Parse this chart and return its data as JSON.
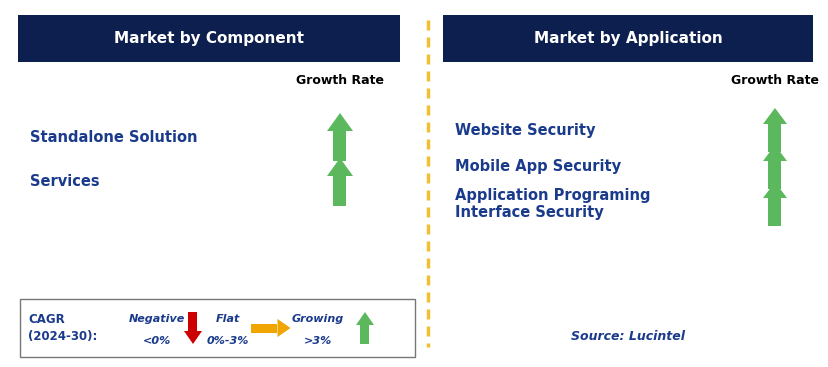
{
  "background_color": "#ffffff",
  "dark_blue": "#0d1f4e",
  "text_blue": "#1a3a8c",
  "green_arrow": "#5cb85c",
  "red_arrow": "#cc0000",
  "orange_arrow": "#f0a500",
  "left_title": "Market by Component",
  "right_title": "Market by Application",
  "left_items": [
    "Standalone Solution",
    "Services"
  ],
  "right_items": [
    "Website Security",
    "Mobile App Security",
    "Application Programing\nInterface Security"
  ],
  "growth_rate_label": "Growth Rate",
  "cagr_label": "CAGR\n(2024-30):",
  "negative_label": "Negative",
  "negative_range": "<0%",
  "flat_label": "Flat",
  "flat_range": "0%-3%",
  "growing_label": "Growing",
  "growing_range": ">3%",
  "source_label": "Source: Lucintel",
  "dashed_line_color": "#f0c030",
  "fig_width": 8.29,
  "fig_height": 3.67,
  "dpi": 100
}
